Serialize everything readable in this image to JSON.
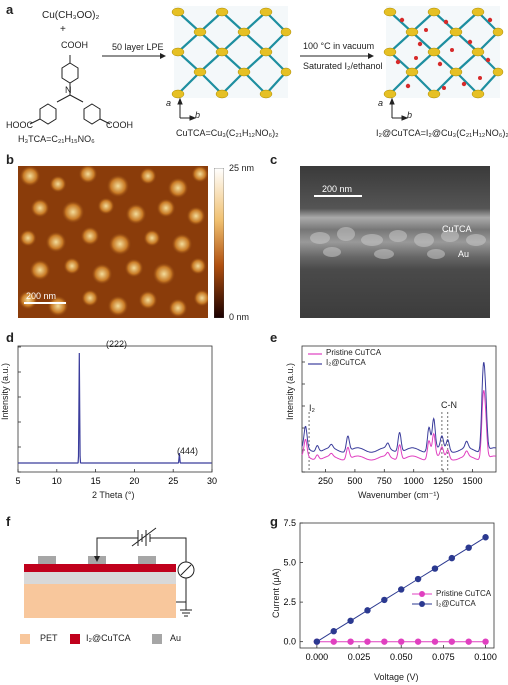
{
  "panels": {
    "a": {
      "label": "a",
      "reagent": "Cu(CH₃OO)₂",
      "plus": "+",
      "linker_groups": [
        "COOH",
        "HOOC",
        "COOH"
      ],
      "linker_N": "N",
      "linker_formula": "H₃TCA=C₂₁H₁₅NO₆",
      "step1_label": "50 layer LPE",
      "step2_line1": "100 °C in vacuum",
      "step2_line2": "Saturated I₂/ethanol",
      "product1_formula": "CuTCA=Cu₃(C₂₁H₁₂NO₆)₂",
      "product2_formula": "I₂@CuTCA=I₂@Cu₃(C₂₁H₁₂NO₆)₂",
      "axes": {
        "a": "a",
        "b": "b"
      }
    },
    "b": {
      "label": "b",
      "scale_max": "25 nm",
      "scale_min": "0 nm",
      "scalebar": "200 nm"
    },
    "c": {
      "label": "c",
      "scalebar": "200 nm",
      "layer1": "CuTCA",
      "layer2": "Au"
    },
    "d": {
      "label": "d",
      "peak1": "(222)",
      "peak2": "(444)"
    },
    "e": {
      "label": "e",
      "ann1": "I₂",
      "ann2": "C-N"
    },
    "f": {
      "label": "f",
      "legend": [
        {
          "name": "PET",
          "color": "#f8c79c"
        },
        {
          "name": "I₂@CuTCA",
          "color": "#c0001c"
        },
        {
          "name": "Au",
          "color": "#a6a6a6"
        }
      ]
    },
    "g": {
      "label": "g"
    }
  },
  "chart_data": [
    {
      "id": "d",
      "type": "line",
      "xlabel": "2 Theta (°)",
      "ylabel": "Intensity (a.u.)",
      "xlim": [
        5,
        30
      ],
      "xticks": [
        5,
        10,
        15,
        20,
        25,
        30
      ],
      "series": [
        {
          "color": "#3b3d9c",
          "peaks": [
            {
              "x": 12.9,
              "y": 1.0
            },
            {
              "x": 25.8,
              "y": 0.09
            }
          ]
        }
      ]
    },
    {
      "id": "e",
      "type": "line",
      "xlabel": "Wavenumber (cm⁻¹)",
      "ylabel": "Intensity (a.u.)",
      "xlim": [
        50,
        1700
      ],
      "xticks": [
        250,
        500,
        750,
        1000,
        1250,
        1500
      ],
      "legend_position": "top-left",
      "series": [
        {
          "name": "Pristine CuTCA",
          "color": "#e040c0"
        },
        {
          "name": "I₂@CuTCA",
          "color": "#3b3d9c"
        }
      ]
    },
    {
      "id": "g",
      "type": "line",
      "xlabel": "Voltage (V)",
      "ylabel": "Current (μA)",
      "xlim": [
        -0.01,
        0.105
      ],
      "ylim": [
        -0.4,
        7.5
      ],
      "xticks": [
        "0.000",
        "0.025",
        "0.050",
        "0.075",
        "0.100"
      ],
      "yticks": [
        "0.0",
        "2.5",
        "5.0",
        "7.5"
      ],
      "legend_position": "center-right",
      "x": [
        0,
        0.01,
        0.02,
        0.03,
        0.04,
        0.05,
        0.06,
        0.07,
        0.08,
        0.09,
        0.1
      ],
      "series": [
        {
          "name": "Pristine CuTCA",
          "color": "#e040c0",
          "values": [
            0,
            0,
            0,
            0,
            0,
            0,
            0,
            0,
            0,
            0,
            0
          ]
        },
        {
          "name": "I₂@CuTCA",
          "color": "#2b3990",
          "values": [
            0,
            0.66,
            1.32,
            1.98,
            2.64,
            3.3,
            3.96,
            4.62,
            5.28,
            5.94,
            6.6
          ]
        }
      ]
    }
  ]
}
